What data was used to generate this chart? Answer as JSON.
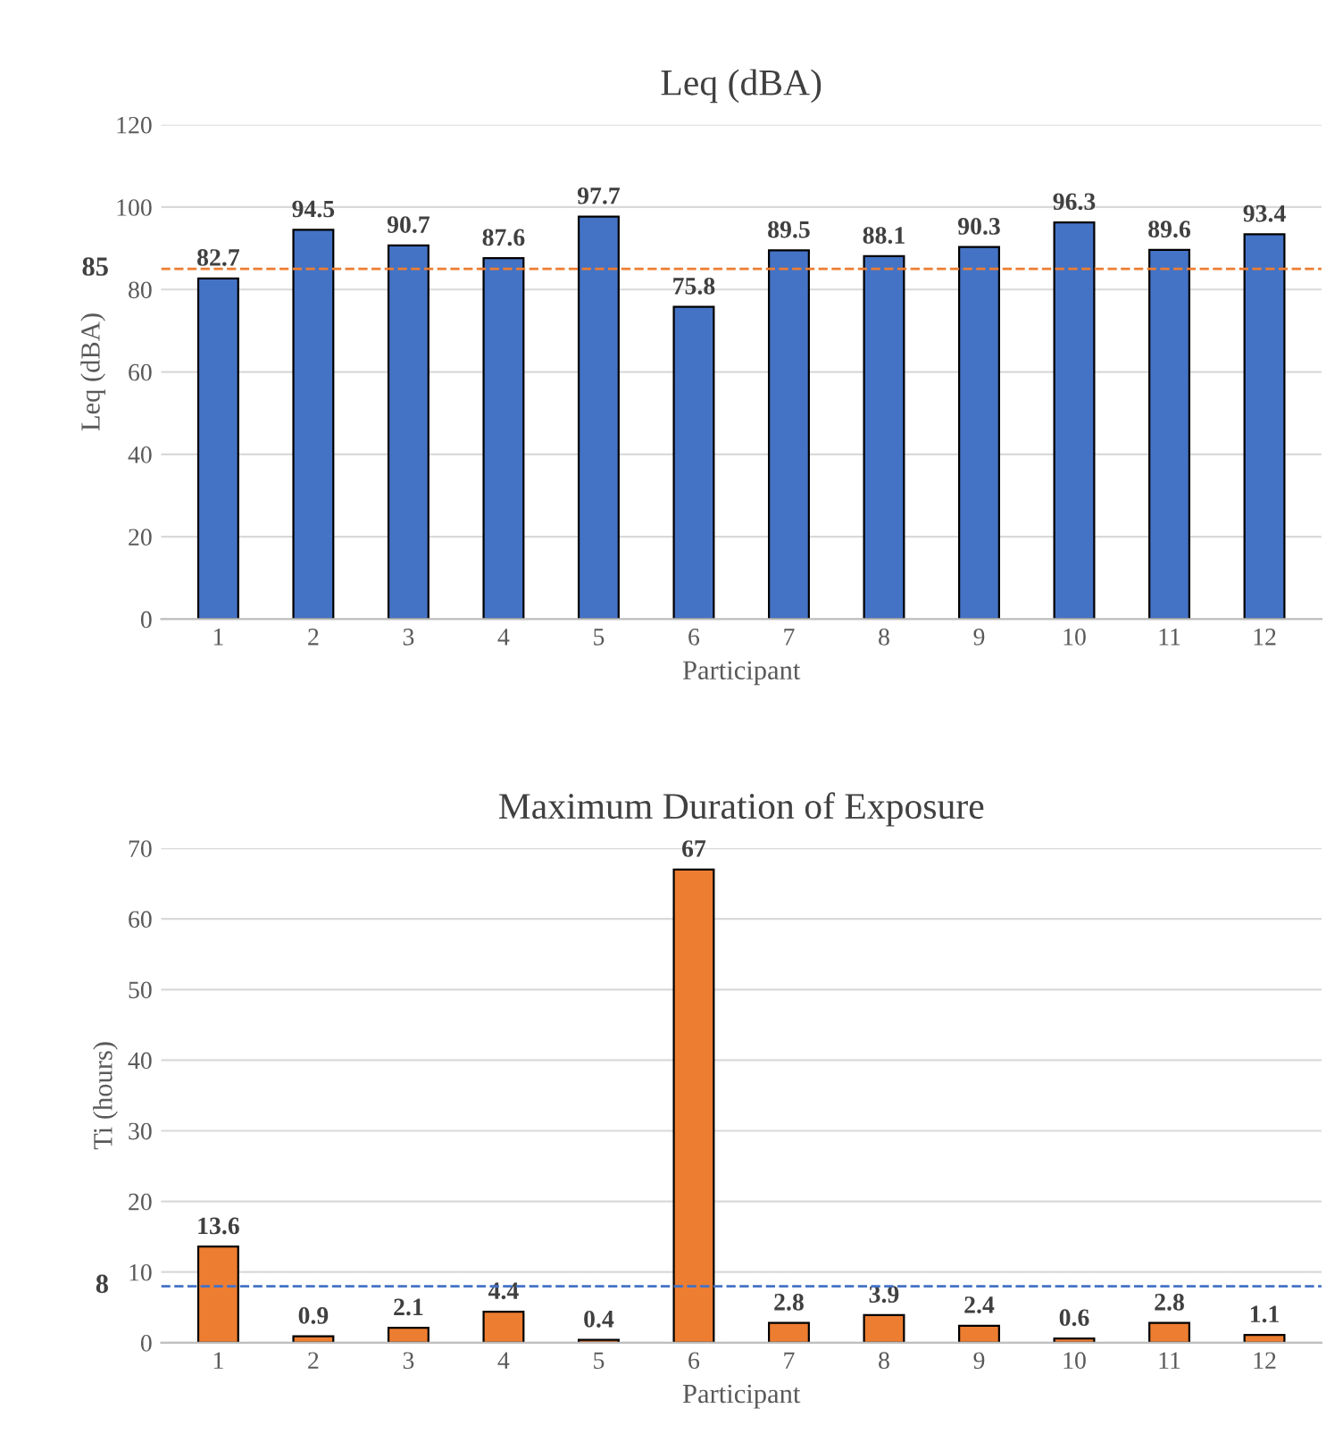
{
  "chart_data": [
    {
      "type": "bar",
      "title": "Leq (dBA)",
      "xlabel": "Participant",
      "ylabel": "Leq (dBA)",
      "categories": [
        "1",
        "2",
        "3",
        "4",
        "5",
        "6",
        "7",
        "8",
        "9",
        "10",
        "11",
        "12"
      ],
      "values": [
        82.7,
        94.5,
        90.7,
        87.6,
        97.7,
        75.8,
        89.5,
        88.1,
        90.3,
        96.3,
        89.6,
        93.4
      ],
      "color": "#4472c4",
      "ylim": [
        0,
        120
      ],
      "yticks": [
        0,
        20,
        40,
        60,
        80,
        100,
        120
      ],
      "grid": "y",
      "data_labels": true,
      "ref_lines": [
        {
          "axis": "y",
          "value": 85,
          "label": "85",
          "color": "#ed7d31",
          "line_style": "dashed"
        }
      ]
    },
    {
      "type": "bar",
      "title": "Maximum Duration of Exposure",
      "xlabel": "Participant",
      "ylabel": "Ti (hours)",
      "categories": [
        "1",
        "2",
        "3",
        "4",
        "5",
        "6",
        "7",
        "8",
        "9",
        "10",
        "11",
        "12"
      ],
      "values": [
        13.6,
        0.9,
        2.1,
        4.4,
        0.4,
        67,
        2.8,
        3.9,
        2.4,
        0.6,
        2.8,
        1.1
      ],
      "color": "#ed7d31",
      "ylim": [
        0,
        70
      ],
      "yticks": [
        0,
        10,
        20,
        30,
        40,
        50,
        60,
        70
      ],
      "grid": "y",
      "data_labels": true,
      "ref_lines": [
        {
          "axis": "y",
          "value": 8,
          "label": "8",
          "color": "#4472c4",
          "line_style": "dashed"
        }
      ]
    }
  ]
}
